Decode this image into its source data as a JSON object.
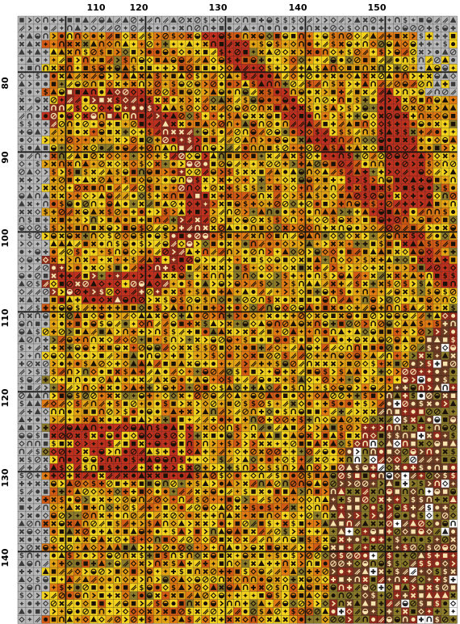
{
  "pattern": {
    "column_labels": [
      "110",
      "120",
      "130",
      "140",
      "150"
    ],
    "row_labels": [
      "80",
      "90",
      "100",
      "110",
      "120",
      "130",
      "140"
    ],
    "palette": {
      "gray": "#b9b9b9",
      "yellow": "#f3d21e",
      "gold": "#e3a214",
      "orange": "#e07a12",
      "deep_orange": "#d35a14",
      "red": "#c0301e",
      "dark_red": "#8e2a1c",
      "brown": "#6b3a22",
      "olive": "#8a7a2a",
      "white": "#ffffff"
    },
    "symbol_icons": [
      "no-entry-icon",
      "circle-icon",
      "plus-icon",
      "x-icon",
      "chevron-right-icon",
      "triangle-icon",
      "half-circle-icon",
      "arch-icon",
      "dollar-icon",
      "star-icon",
      "fish-icon",
      "clover-icon",
      "square-icon",
      "slash-icon",
      "diamond-icon"
    ]
  }
}
